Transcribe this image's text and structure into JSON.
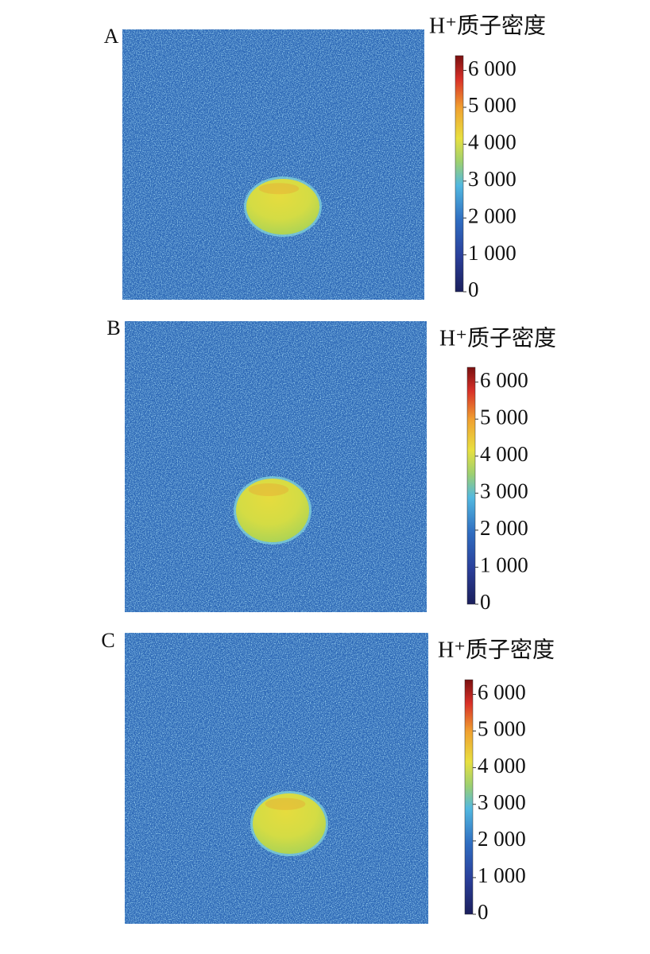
{
  "chart_data": [
    {
      "type": "image",
      "label": "A",
      "colorbar_title": "H⁺质子密度",
      "ylim": [
        0,
        6400
      ],
      "yticks": [
        0,
        {
          "value": 1000,
          "label": "1 000"
        },
        {
          "value": 2000,
          "label": "2 000"
        },
        {
          "value": 3000,
          "label": "3 000"
        },
        {
          "value": 4000,
          "label": "4 000"
        },
        {
          "value": 5000,
          "label": "5 000"
        },
        {
          "value": 6000,
          "label": "6 000"
        }
      ]
    },
    {
      "type": "image",
      "label": "B",
      "colorbar_title": "H⁺质子密度",
      "ylim": [
        0,
        6400
      ],
      "yticks": [
        0,
        {
          "value": 1000,
          "label": "1 000"
        },
        {
          "value": 2000,
          "label": "2 000"
        },
        {
          "value": 3000,
          "label": "3 000"
        },
        {
          "value": 4000,
          "label": "4 000"
        },
        {
          "value": 5000,
          "label": "5 000"
        },
        {
          "value": 6000,
          "label": "6 000"
        }
      ]
    },
    {
      "type": "image",
      "label": "C",
      "colorbar_title": "H⁺质子密度",
      "ylim": [
        0,
        6400
      ],
      "yticks": [
        0,
        {
          "value": 1000,
          "label": "1 000"
        },
        {
          "value": 2000,
          "label": "2 000"
        },
        {
          "value": 3000,
          "label": "3 000"
        },
        {
          "value": 4000,
          "label": "4 000"
        },
        {
          "value": 5000,
          "label": "5 000"
        },
        {
          "value": 6000,
          "label": "6 000"
        }
      ]
    }
  ]
}
